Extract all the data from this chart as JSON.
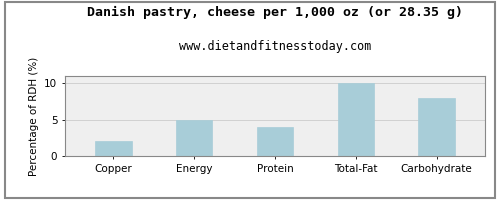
{
  "title": "Danish pastry, cheese per 1,000 oz (or 28.35 g)",
  "subtitle": "www.dietandfitnesstoday.com",
  "categories": [
    "Copper",
    "Energy",
    "Protein",
    "Total-Fat",
    "Carbohydrate"
  ],
  "values": [
    2.0,
    5.0,
    4.0,
    10.0,
    8.0
  ],
  "bar_color": "#a8cdd8",
  "bar_edge_color": "#a8cdd8",
  "ylabel": "Percentage of RDH (%)",
  "ylim": [
    0,
    11
  ],
  "yticks": [
    0,
    5,
    10
  ],
  "background_color": "#ffffff",
  "plot_bg_color": "#efefef",
  "grid_color": "#cccccc",
  "title_fontsize": 9.5,
  "subtitle_fontsize": 8.5,
  "ylabel_fontsize": 7.5,
  "tick_fontsize": 7.5,
  "border_color": "#888888",
  "figure_border_color": "#888888"
}
